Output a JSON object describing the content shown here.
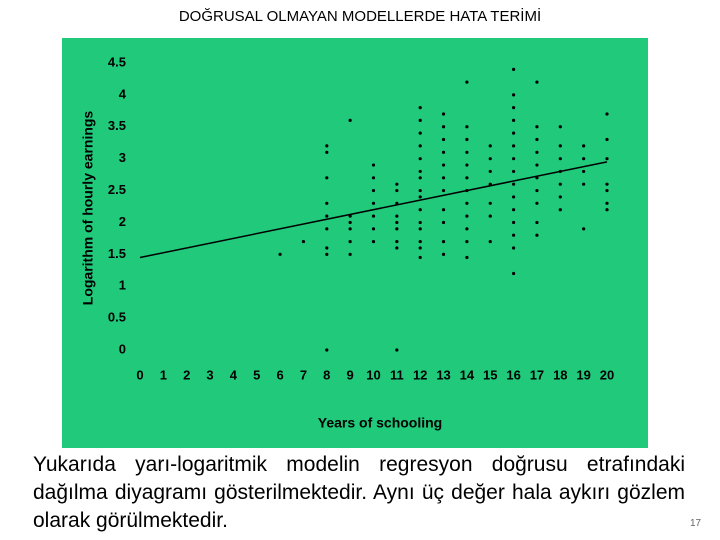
{
  "chart_data": {
    "type": "scatter",
    "title": "DOĞRUSAL OLMAYAN MODELLERDE HATA TERİMİ",
    "x_label": "Years of schooling",
    "y_label": "Logarithm of hourly earnings",
    "xlim": [
      0,
      20
    ],
    "ylim": [
      0,
      4.5
    ],
    "xticks": [
      0,
      1,
      2,
      3,
      4,
      5,
      6,
      7,
      8,
      9,
      10,
      11,
      12,
      13,
      14,
      15,
      16,
      17,
      18,
      19,
      20
    ],
    "yticks": [
      0,
      0.5,
      1,
      1.5,
      2,
      2.5,
      3,
      3.5,
      4,
      4.5
    ],
    "color": "#000000",
    "background": "#21c97a",
    "x": [
      6,
      7,
      8,
      8,
      8,
      8,
      8,
      8,
      8,
      8,
      8,
      9,
      9,
      9,
      9,
      9,
      9,
      10,
      10,
      10,
      10,
      10,
      10,
      10,
      11,
      11,
      11,
      11,
      11,
      11,
      11,
      11,
      11,
      12,
      12,
      12,
      12,
      12,
      12,
      12,
      12,
      12,
      12,
      12,
      12,
      12,
      12,
      12,
      13,
      13,
      13,
      13,
      13,
      13,
      13,
      13,
      13,
      13,
      13,
      14,
      14,
      14,
      14,
      14,
      14,
      14,
      14,
      14,
      14,
      14,
      14,
      15,
      15,
      15,
      15,
      15,
      15,
      15,
      16,
      16,
      16,
      16,
      16,
      16,
      16,
      16,
      16,
      16,
      16,
      16,
      16,
      16,
      16,
      17,
      17,
      17,
      17,
      17,
      17,
      17,
      17,
      17,
      17,
      18,
      18,
      18,
      18,
      18,
      18,
      18,
      19,
      19,
      19,
      19,
      19,
      20,
      20,
      20,
      20,
      20,
      20,
      20
    ],
    "values": [
      1.5,
      1.7,
      0,
      1.5,
      1.6,
      1.9,
      2.1,
      2.3,
      2.7,
      3.1,
      3.2,
      1.5,
      1.7,
      1.9,
      2.0,
      2.1,
      3.6,
      1.7,
      1.9,
      2.1,
      2.3,
      2.5,
      2.7,
      2.9,
      0,
      1.6,
      1.7,
      1.9,
      2.0,
      2.1,
      2.3,
      2.5,
      2.6,
      1.45,
      1.6,
      1.7,
      1.9,
      2.0,
      2.2,
      2.4,
      2.5,
      2.7,
      2.8,
      3.0,
      3.2,
      3.4,
      3.6,
      3.8,
      1.5,
      1.7,
      2.0,
      2.2,
      2.5,
      2.7,
      2.9,
      3.1,
      3.3,
      3.5,
      3.7,
      1.45,
      1.7,
      1.9,
      2.1,
      2.3,
      2.5,
      2.7,
      2.9,
      3.1,
      3.3,
      3.5,
      4.2,
      1.7,
      2.1,
      2.3,
      2.6,
      2.8,
      3.0,
      3.2,
      1.2,
      1.6,
      1.8,
      2.0,
      2.2,
      2.4,
      2.6,
      2.8,
      3.0,
      3.2,
      3.4,
      3.6,
      3.8,
      4.0,
      4.4,
      1.8,
      2.0,
      2.3,
      2.5,
      2.7,
      2.9,
      3.1,
      3.3,
      3.5,
      4.2,
      2.2,
      2.4,
      2.6,
      2.8,
      3.0,
      3.2,
      3.5,
      1.9,
      2.6,
      2.8,
      3.0,
      3.2,
      2.2,
      2.3,
      2.5,
      2.6,
      3.0,
      3.3,
      3.7
    ],
    "trend_line": {
      "x": [
        0,
        20
      ],
      "values": [
        1.45,
        2.95
      ]
    }
  },
  "slide": {
    "body": "Yukarıda yarı-logaritmik modelin regresyon doğrusu etrafındaki dağılma diyagramı gösterilmektedir. Aynı üç değer hala aykırı gözlem olarak görülmektedir.",
    "page_number": "17"
  }
}
